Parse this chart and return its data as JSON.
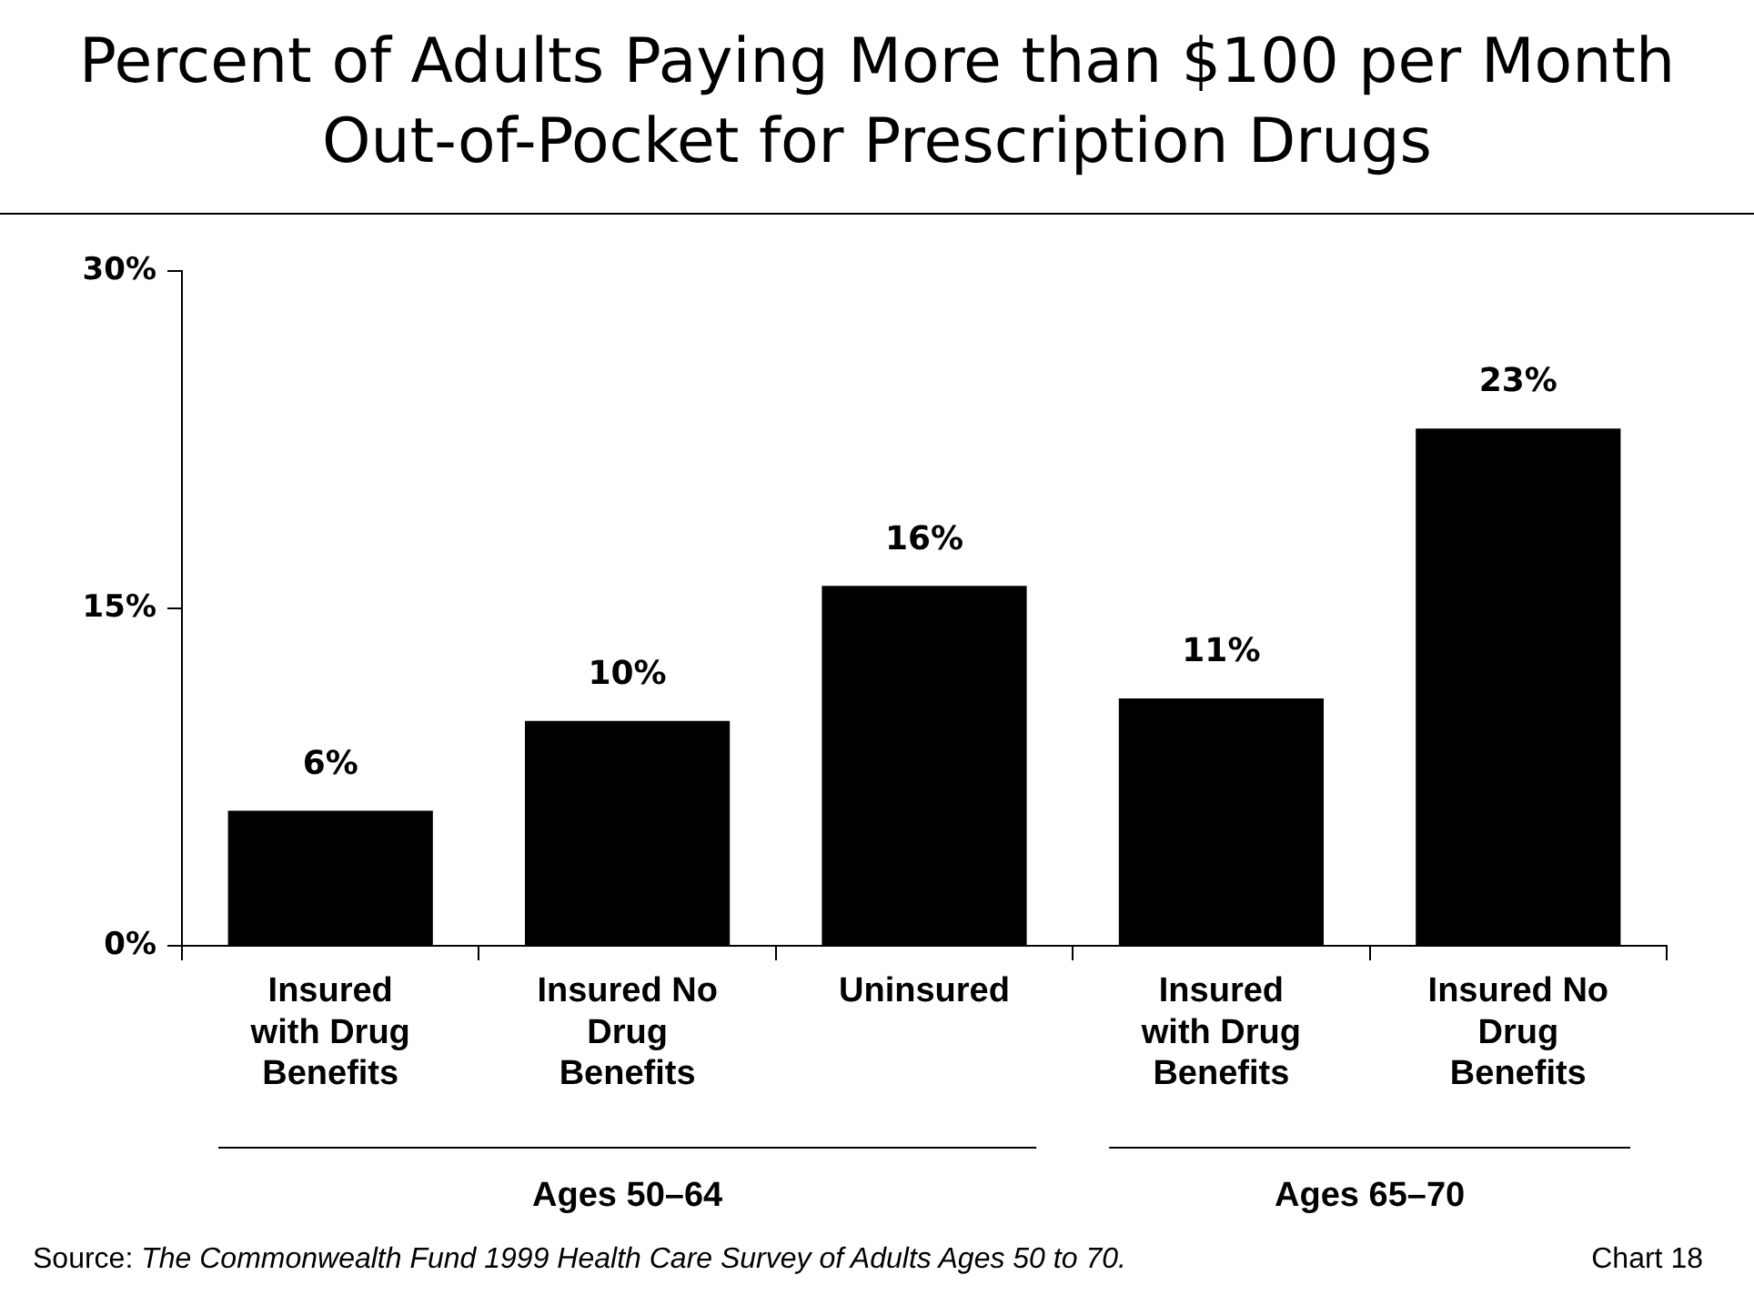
{
  "chart_data": {
    "type": "bar",
    "title": "Percent of Adults Paying More than $100 per Month Out-of-Pocket for Prescription Drugs",
    "categories": [
      "Insured with Drug Benefits",
      "Insured No Drug Benefits",
      "Uninsured",
      "Insured with Drug Benefits",
      "Insured No Drug Benefits"
    ],
    "values": [
      6,
      10,
      16,
      11,
      23
    ],
    "color": "#000000",
    "value_labels": [
      "6%",
      "10%",
      "16%",
      "11%",
      "23%"
    ],
    "ylim": [
      0,
      30
    ],
    "yticks": [
      {
        "value": 0,
        "label": "0%"
      },
      {
        "value": 15,
        "label": "15%"
      },
      {
        "value": 30,
        "label": "30%"
      }
    ],
    "grid": false,
    "legend": false,
    "annotations": [
      "Ages 50–64",
      "Ages 65–70",
      "Source: The Commonwealth Fund 1999 Health Care Survey of Adults Ages 50 to 70.",
      "Chart 18"
    ]
  }
}
